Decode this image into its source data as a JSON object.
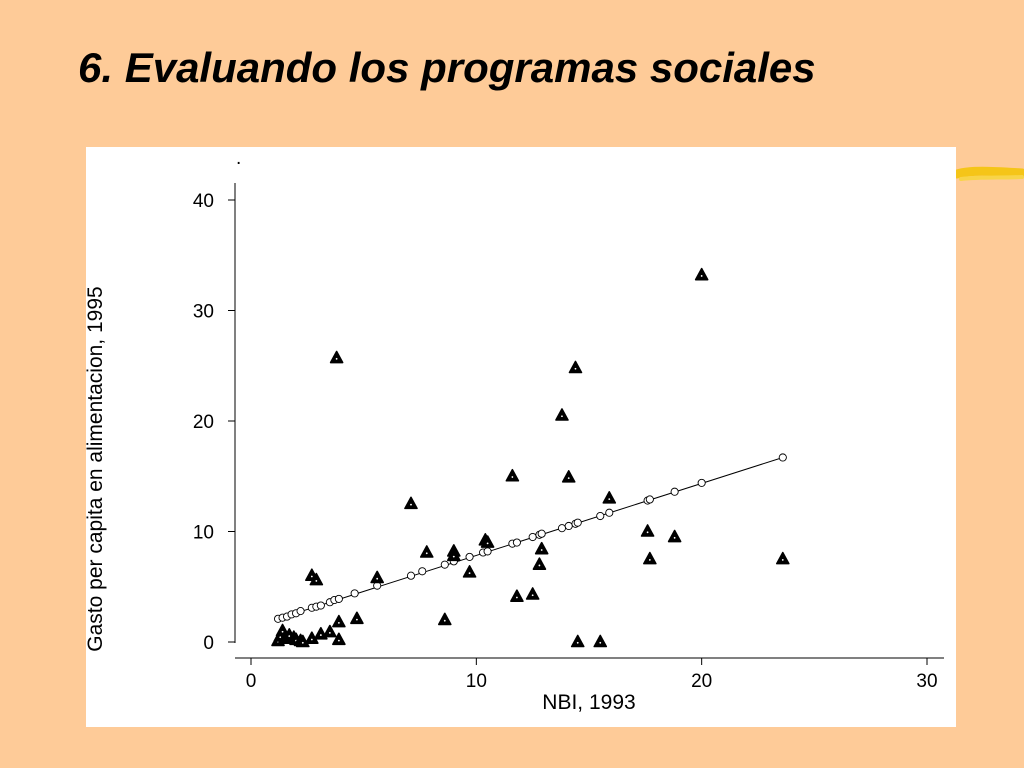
{
  "slide": {
    "title": "6.  Evaluando los programas sociales"
  },
  "colors": {
    "background": "#fecb98",
    "panel": "#ffffff",
    "highlight": "#f5c518",
    "ink": "#000000"
  },
  "chart_data": {
    "type": "scatter",
    "title": "",
    "xlabel": "NBI, 1993",
    "ylabel": "Gasto per capita en alimentacion, 1995",
    "xlim": [
      0,
      30
    ],
    "ylim": [
      0,
      40
    ],
    "xticks": [
      0,
      10,
      20,
      30
    ],
    "yticks": [
      0,
      10,
      20,
      30,
      40
    ],
    "grid": false,
    "series": [
      {
        "marker": "triangle",
        "points": [
          [
            1.2,
            0.1
          ],
          [
            1.3,
            0.5
          ],
          [
            1.4,
            1.0
          ],
          [
            1.5,
            0.3
          ],
          [
            1.7,
            0.6
          ],
          [
            1.9,
            0.4
          ],
          [
            2.0,
            0.2
          ],
          [
            2.2,
            0.1
          ],
          [
            2.3,
            0.0
          ],
          [
            2.7,
            0.3
          ],
          [
            2.7,
            6.0
          ],
          [
            2.9,
            5.6
          ],
          [
            3.1,
            0.7
          ],
          [
            3.5,
            0.9
          ],
          [
            3.8,
            25.7
          ],
          [
            3.9,
            1.8
          ],
          [
            3.9,
            0.2
          ],
          [
            4.7,
            2.1
          ],
          [
            5.6,
            5.8
          ],
          [
            7.1,
            12.5
          ],
          [
            7.8,
            8.1
          ],
          [
            8.6,
            2.0
          ],
          [
            9.0,
            8.2
          ],
          [
            9.0,
            7.8
          ],
          [
            9.7,
            6.3
          ],
          [
            10.4,
            9.2
          ],
          [
            10.5,
            9.0
          ],
          [
            11.6,
            15.0
          ],
          [
            11.8,
            4.1
          ],
          [
            12.5,
            4.3
          ],
          [
            12.8,
            7.0
          ],
          [
            12.9,
            8.4
          ],
          [
            13.8,
            20.5
          ],
          [
            14.1,
            14.9
          ],
          [
            14.4,
            24.8
          ],
          [
            14.5,
            0.0
          ],
          [
            15.5,
            0.0
          ],
          [
            15.9,
            13.0
          ],
          [
            17.6,
            10.0
          ],
          [
            17.7,
            7.5
          ],
          [
            18.8,
            9.5
          ],
          [
            20.0,
            33.2
          ],
          [
            23.6,
            7.5
          ]
        ]
      },
      {
        "marker": "circle",
        "points": [
          [
            1.2,
            2.1
          ],
          [
            1.4,
            2.2
          ],
          [
            1.6,
            2.3
          ],
          [
            1.8,
            2.5
          ],
          [
            2.0,
            2.6
          ],
          [
            2.2,
            2.8
          ],
          [
            2.7,
            3.1
          ],
          [
            2.9,
            3.2
          ],
          [
            3.1,
            3.3
          ],
          [
            3.5,
            3.6
          ],
          [
            3.7,
            3.8
          ],
          [
            3.9,
            3.9
          ],
          [
            4.6,
            4.4
          ],
          [
            5.6,
            5.1
          ],
          [
            7.1,
            6.0
          ],
          [
            7.6,
            6.4
          ],
          [
            8.6,
            7.0
          ],
          [
            9.0,
            7.3
          ],
          [
            9.7,
            7.7
          ],
          [
            10.3,
            8.1
          ],
          [
            10.5,
            8.2
          ],
          [
            11.6,
            8.9
          ],
          [
            11.8,
            9.0
          ],
          [
            12.5,
            9.5
          ],
          [
            12.8,
            9.7
          ],
          [
            12.9,
            9.8
          ],
          [
            13.8,
            10.3
          ],
          [
            14.1,
            10.5
          ],
          [
            14.4,
            10.7
          ],
          [
            14.5,
            10.8
          ],
          [
            15.5,
            11.4
          ],
          [
            15.9,
            11.7
          ],
          [
            17.6,
            12.8
          ],
          [
            17.7,
            12.9
          ],
          [
            18.8,
            13.6
          ],
          [
            20.0,
            14.4
          ],
          [
            23.6,
            16.7
          ]
        ]
      }
    ],
    "trend_line": [
      [
        1.2,
        2.1
      ],
      [
        23.6,
        16.7
      ]
    ]
  }
}
